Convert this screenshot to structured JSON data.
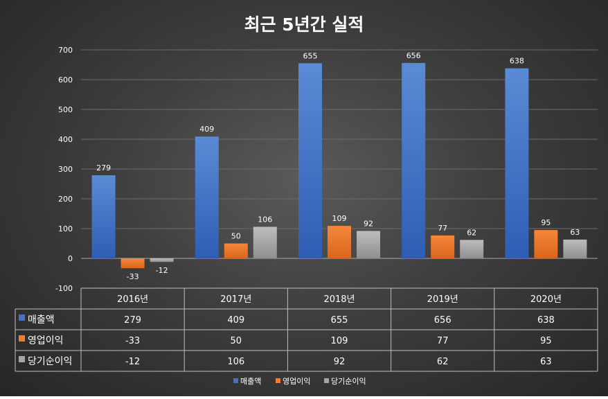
{
  "chart_data": {
    "type": "bar",
    "title": "최근 5년간 실적",
    "categories": [
      "2016년",
      "2017년",
      "2018년",
      "2019년",
      "2020년"
    ],
    "series": [
      {
        "name": "매출액",
        "values": [
          279,
          409,
          655,
          656,
          638
        ],
        "color": "#4472C4"
      },
      {
        "name": "영업이익",
        "values": [
          -33,
          50,
          109,
          77,
          95
        ],
        "color": "#ED7D31"
      },
      {
        "name": "당기순이익",
        "values": [
          -12,
          106,
          92,
          62,
          63
        ],
        "color": "#A5A5A5"
      }
    ],
    "yticks": [
      -100,
      0,
      100,
      200,
      300,
      400,
      500,
      600,
      700
    ],
    "ylim": [
      -100,
      700
    ],
    "grid": true,
    "data_table": true,
    "legend_position": "bottom"
  }
}
